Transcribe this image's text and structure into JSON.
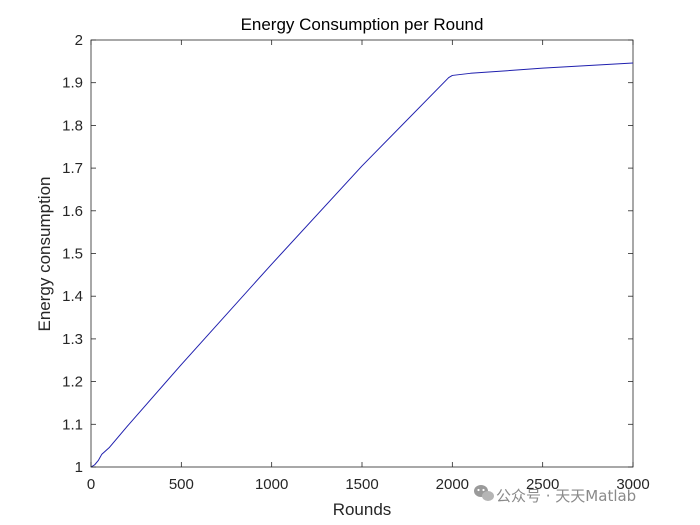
{
  "chart_data": {
    "type": "line",
    "title": "Energy Consumption per Round",
    "xlabel": "Rounds",
    "ylabel": "Energy consumption",
    "xlim": [
      0,
      3000
    ],
    "ylim": [
      1,
      2
    ],
    "xticks": [
      0,
      500,
      1000,
      1500,
      2000,
      2500,
      3000
    ],
    "yticks": [
      1,
      1.1,
      1.2,
      1.3,
      1.4,
      1.5,
      1.6,
      1.7,
      1.8,
      1.9,
      2
    ],
    "grid": false,
    "series": [
      {
        "color": "#1f1fae",
        "x": [
          0,
          20,
          40,
          60,
          100,
          200,
          500,
          1000,
          1500,
          1980,
          2000,
          2100,
          2500,
          3000
        ],
        "y": [
          1.0,
          1.005,
          1.015,
          1.03,
          1.045,
          1.095,
          1.24,
          1.475,
          1.705,
          1.912,
          1.917,
          1.922,
          1.934,
          1.946
        ]
      }
    ]
  },
  "watermark": {
    "icon": "wechat-icon",
    "text": "公众号 · 天天Matlab"
  }
}
